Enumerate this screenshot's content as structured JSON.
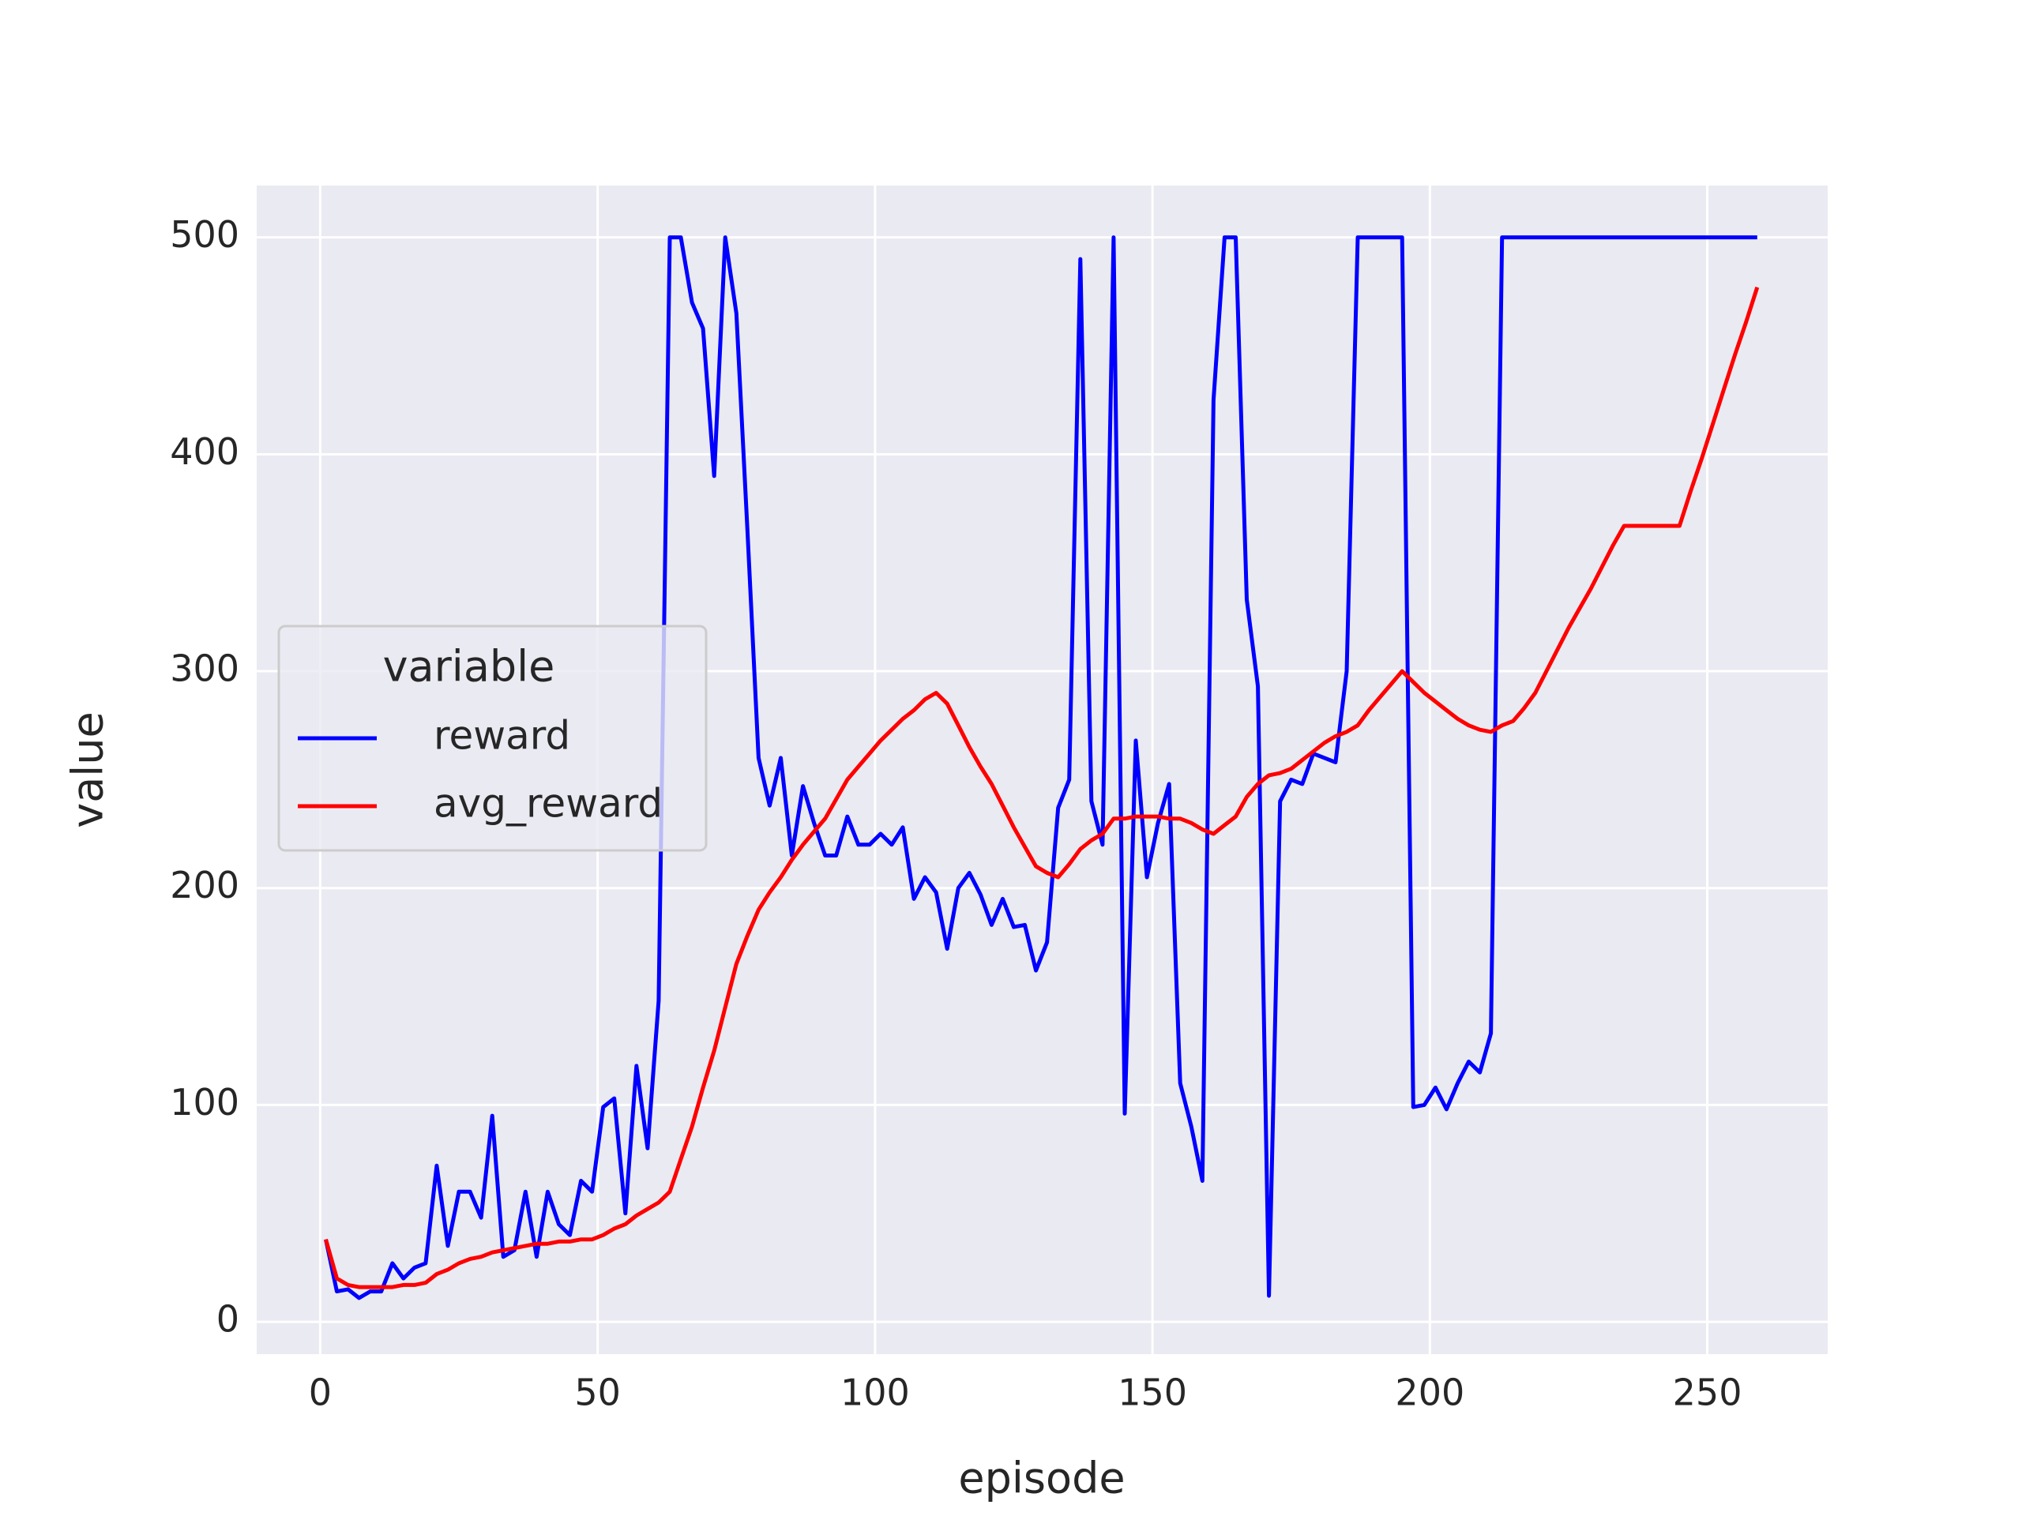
{
  "chart_data": {
    "type": "line",
    "xlabel": "episode",
    "ylabel": "value",
    "x": [
      1,
      3,
      5,
      7,
      9,
      11,
      13,
      15,
      17,
      19,
      21,
      23,
      25,
      27,
      29,
      31,
      33,
      35,
      37,
      39,
      41,
      43,
      45,
      47,
      49,
      51,
      53,
      55,
      57,
      59,
      61,
      63,
      65,
      67,
      69,
      71,
      73,
      75,
      77,
      79,
      81,
      83,
      85,
      87,
      89,
      91,
      93,
      95,
      97,
      99,
      101,
      103,
      105,
      107,
      109,
      111,
      113,
      115,
      117,
      119,
      121,
      123,
      125,
      127,
      129,
      131,
      133,
      135,
      137,
      139,
      141,
      143,
      145,
      147,
      149,
      151,
      153,
      155,
      157,
      159,
      161,
      163,
      165,
      167,
      169,
      171,
      173,
      175,
      177,
      179,
      181,
      183,
      185,
      187,
      189,
      191,
      193,
      195,
      197,
      199,
      201,
      203,
      205,
      207,
      209,
      211,
      213,
      215,
      217,
      219,
      221,
      223,
      225,
      227,
      229,
      231,
      233,
      235,
      237,
      239,
      241,
      243,
      245,
      247,
      249,
      251,
      253,
      255,
      257,
      259
    ],
    "series": [
      {
        "name": "reward",
        "color": "#0000ff",
        "values": [
          38,
          14,
          15,
          11,
          14,
          14,
          27,
          20,
          25,
          27,
          72,
          35,
          60,
          60,
          48,
          95,
          30,
          33,
          60,
          30,
          60,
          45,
          40,
          65,
          60,
          99,
          103,
          50,
          118,
          80,
          148,
          500,
          500,
          470,
          458,
          390,
          500,
          465,
          365,
          260,
          238,
          260,
          215,
          247,
          230,
          215,
          215,
          233,
          220,
          220,
          225,
          220,
          228,
          195,
          205,
          198,
          172,
          200,
          207,
          197,
          183,
          195,
          182,
          183,
          162,
          175,
          237,
          250,
          490,
          240,
          220,
          500,
          96,
          268,
          205,
          230,
          248,
          110,
          90,
          65,
          425,
          500,
          500,
          333,
          293,
          12,
          240,
          250,
          248,
          262,
          260,
          258,
          300,
          500,
          500,
          500,
          500,
          500,
          99,
          100,
          108,
          98,
          110,
          120,
          115,
          133,
          500,
          500,
          500,
          500,
          500,
          500,
          500,
          500,
          500,
          500,
          500,
          500,
          500,
          500,
          500,
          500,
          500,
          500,
          500,
          500,
          500,
          500,
          500,
          500
        ]
      },
      {
        "name": "avg_reward",
        "color": "#ff0000",
        "values": [
          38,
          20,
          17,
          16,
          16,
          16,
          16,
          17,
          17,
          18,
          22,
          24,
          27,
          29,
          30,
          32,
          33,
          34,
          35,
          36,
          36,
          37,
          37,
          38,
          38,
          40,
          43,
          45,
          49,
          52,
          55,
          60,
          75,
          90,
          108,
          125,
          145,
          165,
          178,
          190,
          198,
          205,
          213,
          220,
          226,
          232,
          241,
          250,
          256,
          262,
          268,
          273,
          278,
          282,
          287,
          290,
          285,
          275,
          265,
          256,
          248,
          238,
          228,
          219,
          210,
          207,
          205,
          211,
          218,
          222,
          225,
          232,
          232,
          233,
          233,
          233,
          232,
          232,
          230,
          227,
          225,
          229,
          233,
          242,
          248,
          252,
          253,
          255,
          259,
          263,
          267,
          270,
          272,
          275,
          282,
          288,
          294,
          300,
          295,
          290,
          286,
          282,
          278,
          275,
          273,
          272,
          275,
          277,
          283,
          290,
          300,
          310,
          320,
          329,
          338,
          348,
          358,
          367,
          367,
          367,
          367,
          367,
          367,
          383,
          398,
          414,
          430,
          446,
          461,
          477
        ]
      }
    ],
    "legend_title": "variable",
    "legend_position": "center left",
    "xlim": [
      -11.45,
      271.7
    ],
    "xticks": [
      0,
      50,
      100,
      150,
      200,
      250
    ],
    "ylim": [
      -14.9,
      523.9
    ],
    "yticks": [
      0,
      100,
      200,
      300,
      400,
      500
    ],
    "grid": true
  }
}
